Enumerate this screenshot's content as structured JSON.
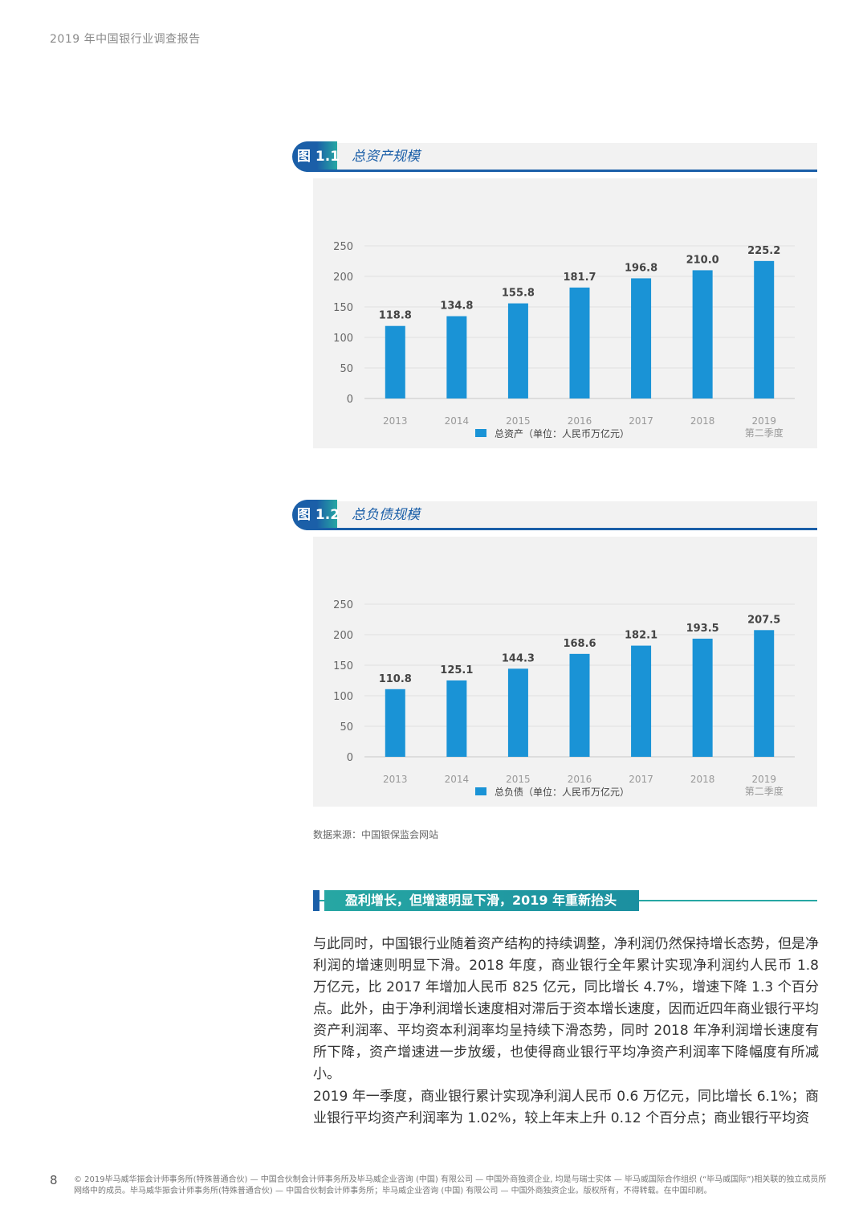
{
  "header": {
    "title": "2019 年中国银行业调查报告"
  },
  "figures": [
    {
      "badge": "图 1.1",
      "title": "总资产规模",
      "chart_data": {
        "type": "bar",
        "categories": [
          "2013",
          "2014",
          "2015",
          "2016",
          "2017",
          "2018",
          "2019"
        ],
        "category_sublabels": [
          "",
          "",
          "",
          "",
          "",
          "",
          "第二季度"
        ],
        "series": [
          {
            "name": "总资产（单位：人民币万亿元）",
            "values": [
              118.8,
              134.8,
              155.8,
              181.7,
              196.8,
              210.0,
              225.2
            ]
          }
        ],
        "value_labels": [
          "118.8",
          "134.8",
          "155.8",
          "181.7",
          "196.8",
          "210.0",
          "225.2"
        ],
        "yticks": [
          "0",
          "50",
          "100",
          "150",
          "200",
          "250"
        ],
        "ylim": [
          0,
          250
        ],
        "grid": true,
        "legend": "bottom-center",
        "color": "#1a93d6"
      }
    },
    {
      "badge": "图 1.2",
      "title": "总负债规模",
      "chart_data": {
        "type": "bar",
        "categories": [
          "2013",
          "2014",
          "2015",
          "2016",
          "2017",
          "2018",
          "2019"
        ],
        "category_sublabels": [
          "",
          "",
          "",
          "",
          "",
          "",
          "第二季度"
        ],
        "series": [
          {
            "name": "总负债（单位：人民币万亿元）",
            "values": [
              110.8,
              125.1,
              144.3,
              168.6,
              182.1,
              193.5,
              207.5
            ]
          }
        ],
        "value_labels": [
          "110.8",
          "125.1",
          "144.3",
          "168.6",
          "182.1",
          "193.5",
          "207.5"
        ],
        "yticks": [
          "0",
          "50",
          "100",
          "150",
          "200",
          "250"
        ],
        "ylim": [
          0,
          250
        ],
        "grid": true,
        "legend": "bottom-center",
        "color": "#1a93d6"
      }
    }
  ],
  "source": "数据来源：中国银保监会网站",
  "section": {
    "title": "盈利增长，但增速明显下滑，2019 年重新抬头"
  },
  "paragraphs": [
    "与此同时，中国银行业随着资产结构的持续调整，净利润仍然保持增长态势，但是净利润的增速则明显下滑。2018 年度，商业银行全年累计实现净利润约人民币 1.8 万亿元，比 2017 年增加人民币 825 亿元，同比增长 4.7%，增速下降 1.3 个百分点。此外，由于净利润增长速度相对滞后于资本增长速度，因而近四年商业银行平均资产利润率、平均资本利润率均呈持续下滑态势，同时 2018 年净利润增长速度有所下降，资产增速进一步放缓，也使得商业银行平均净资产利润率下降幅度有所减小。",
    "2019 年一季度，商业银行累计实现净利润人民币 0.6 万亿元，同比增长 6.1%；商业银行平均资产利润率为 1.02%，较上年末上升 0.12 个百分点；商业银行平均资"
  ],
  "footer": {
    "page_number": "8",
    "copyright": "© 2019毕马威华振会计师事务所(特殊普通合伙) — 中国合伙制会计师事务所及毕马威企业咨询 (中国) 有限公司 — 中国外商独资企业, 均是与瑞士实体 — 毕马威国际合作组织 (“毕马威国际”)相关联的独立成员所网络中的成员。毕马威华振会计师事务所(特殊普通合伙) — 中国合伙制会计师事务所；毕马威企业咨询 (中国) 有限公司 — 中国外商独资企业。版权所有，不得转载。在中国印刷。"
  }
}
